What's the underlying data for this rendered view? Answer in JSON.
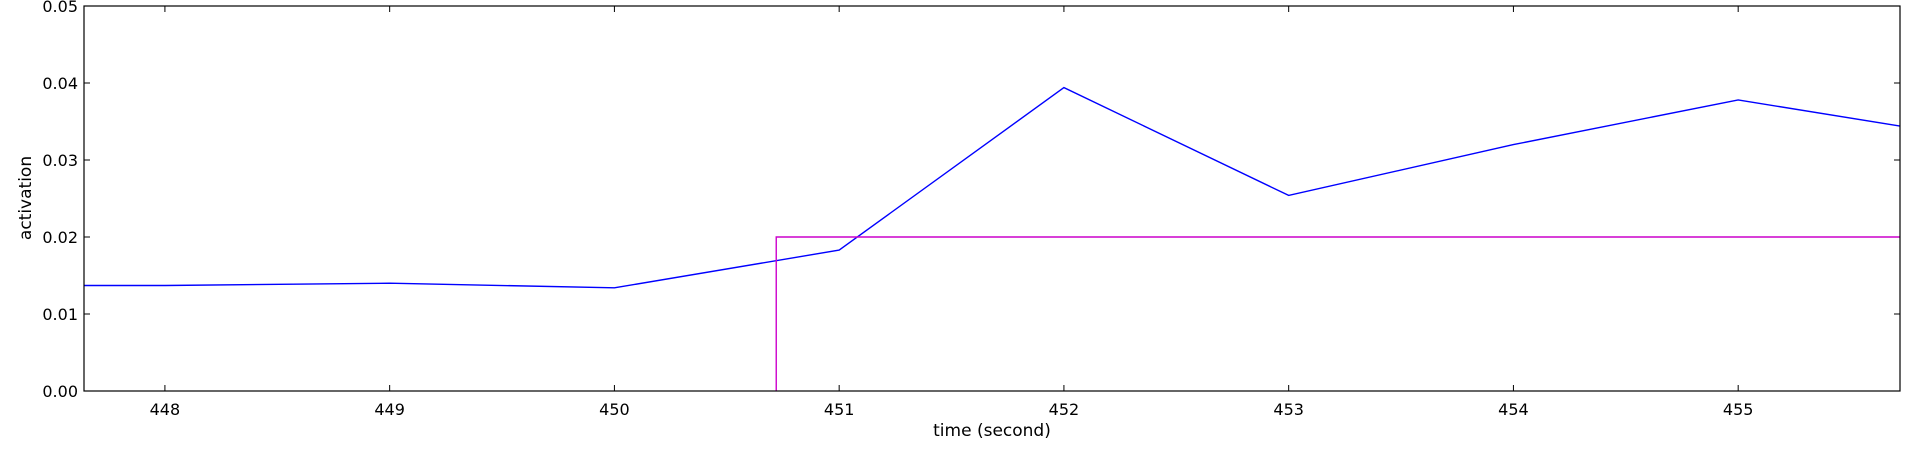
{
  "chart_data": {
    "type": "line",
    "title": "",
    "xlabel": "time (second)",
    "ylabel": "activation",
    "xlim": [
      447.64,
      455.72
    ],
    "ylim": [
      0.0,
      0.05
    ],
    "x_ticks": [
      448,
      449,
      450,
      451,
      452,
      453,
      454,
      455
    ],
    "x_tick_labels": [
      "448",
      "449",
      "450",
      "451",
      "452",
      "453",
      "454",
      "455"
    ],
    "y_ticks": [
      0.0,
      0.01,
      0.02,
      0.03,
      0.04,
      0.05
    ],
    "y_tick_labels": [
      "0.00",
      "0.01",
      "0.02",
      "0.03",
      "0.04",
      "0.05"
    ],
    "grid": false,
    "legend": "none",
    "series": [
      {
        "color": "#0000ff",
        "style": "line",
        "points": [
          [
            447.64,
            0.0137
          ],
          [
            448,
            0.0137
          ],
          [
            449,
            0.014
          ],
          [
            450,
            0.0134
          ],
          [
            451,
            0.0183
          ],
          [
            452,
            0.0394
          ],
          [
            453,
            0.0254
          ],
          [
            454,
            0.032
          ],
          [
            455,
            0.0378
          ],
          [
            455.72,
            0.0344
          ]
        ]
      },
      {
        "color": "#cc00cc",
        "style": "step",
        "points": [
          [
            450.72,
            0.0
          ],
          [
            450.72,
            0.02
          ],
          [
            455.72,
            0.02
          ]
        ]
      }
    ]
  }
}
